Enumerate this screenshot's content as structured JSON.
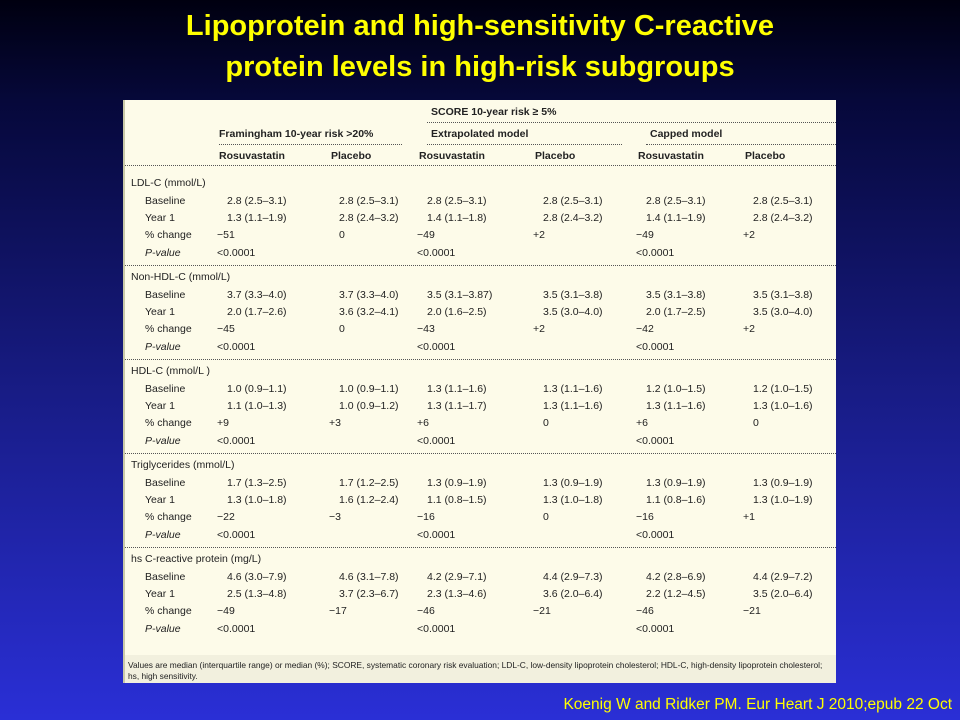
{
  "slide": {
    "title_line1": "Lipoprotein and high-sensitivity C-reactive",
    "title_line2": "protein levels in high-risk subgroups",
    "citation": "Koenig W and Ridker PM.   Eur Heart J 2010;epub 22 Oct"
  },
  "table": {
    "score_header": "SCORE 10-year risk ≥ 5%",
    "group_framingham": "Framingham 10-year risk >20%",
    "group_extrapolated": "Extrapolated model",
    "group_capped": "Capped model",
    "col_headers": [
      "Rosuvastatin",
      "Placebo",
      "Rosuvastatin",
      "Placebo",
      "Rosuvastatin",
      "Placebo"
    ],
    "sections": [
      {
        "title": "LDL-C (mmol/L)",
        "rows": [
          {
            "label": "Baseline",
            "cells": [
              "2.8 (2.5–3.1)",
              "2.8 (2.5–3.1)",
              "2.8 (2.5–3.1)",
              "2.8 (2.5–3.1)",
              "2.8 (2.5–3.1)",
              "2.8 (2.5–3.1)"
            ]
          },
          {
            "label": "Year 1",
            "cells": [
              "1.3 (1.1–1.9)",
              "2.8 (2.4–3.2)",
              "1.4 (1.1–1.8)",
              "2.8 (2.4–3.2)",
              "1.4 (1.1–1.9)",
              "2.8 (2.4–3.2)"
            ]
          },
          {
            "label": "% change",
            "cells": [
              "−51",
              "0",
              "−49",
              "+2",
              "−49",
              "+2"
            ]
          },
          {
            "label": "P-value",
            "cells": [
              "<0.0001",
              "",
              "<0.0001",
              "",
              "<0.0001",
              ""
            ]
          }
        ]
      },
      {
        "title": "Non-HDL-C (mmol/L)",
        "rows": [
          {
            "label": "Baseline",
            "cells": [
              "3.7 (3.3–4.0)",
              "3.7 (3.3–4.0)",
              "3.5 (3.1–3.87)",
              "3.5 (3.1–3.8)",
              "3.5 (3.1–3.8)",
              "3.5 (3.1–3.8)"
            ]
          },
          {
            "label": "Year 1",
            "cells": [
              "2.0 (1.7–2.6)",
              "3.6 (3.2–4.1)",
              "2.0 (1.6–2.5)",
              "3.5 (3.0–4.0)",
              "2.0 (1.7–2.5)",
              "3.5 (3.0–4.0)"
            ]
          },
          {
            "label": "% change",
            "cells": [
              "−45",
              "0",
              "−43",
              "+2",
              "−42",
              "+2"
            ]
          },
          {
            "label": "P-value",
            "cells": [
              "<0.0001",
              "",
              "<0.0001",
              "",
              "<0.0001",
              ""
            ]
          }
        ]
      },
      {
        "title": "HDL-C (mmol/L )",
        "rows": [
          {
            "label": "Baseline",
            "cells": [
              "1.0 (0.9–1.1)",
              "1.0 (0.9–1.1)",
              "1.3 (1.1–1.6)",
              "1.3 (1.1–1.6)",
              "1.2 (1.0–1.5)",
              "1.2 (1.0–1.5)"
            ]
          },
          {
            "label": "Year 1",
            "cells": [
              "1.1 (1.0–1.3)",
              "1.0 (0.9–1.2)",
              "1.3 (1.1–1.7)",
              "1.3 (1.1–1.6)",
              "1.3 (1.1–1.6)",
              "1.3 (1.0–1.6)"
            ]
          },
          {
            "label": "% change",
            "cells": [
              "+9",
              "+3",
              "+6",
              "0",
              "+6",
              "0"
            ]
          },
          {
            "label": "P-value",
            "cells": [
              "<0.0001",
              "",
              "<0.0001",
              "",
              "<0.0001",
              ""
            ]
          }
        ]
      },
      {
        "title": "Triglycerides (mmol/L)",
        "rows": [
          {
            "label": "Baseline",
            "cells": [
              "1.7 (1.3–2.5)",
              "1.7 (1.2–2.5)",
              "1.3 (0.9–1.9)",
              "1.3 (0.9–1.9)",
              "1.3 (0.9–1.9)",
              "1.3 (0.9–1.9)"
            ]
          },
          {
            "label": "Year 1",
            "cells": [
              "1.3 (1.0–1.8)",
              "1.6 (1.2–2.4)",
              "1.1 (0.8–1.5)",
              "1.3 (1.0–1.8)",
              "1.1 (0.8–1.6)",
              "1.3 (1.0–1.9)"
            ]
          },
          {
            "label": "% change",
            "cells": [
              "−22",
              "−3",
              "−16",
              "0",
              "−16",
              "+1"
            ]
          },
          {
            "label": "P-value",
            "cells": [
              "<0.0001",
              "",
              "<0.0001",
              "",
              "<0.0001",
              ""
            ]
          }
        ]
      },
      {
        "title": "hs C-reactive protein (mg/L)",
        "rows": [
          {
            "label": "Baseline",
            "cells": [
              "4.6 (3.0–7.9)",
              "4.6 (3.1–7.8)",
              "4.2 (2.9–7.1)",
              "4.4 (2.9–7.3)",
              "4.2 (2.8–6.9)",
              "4.4 (2.9–7.2)"
            ]
          },
          {
            "label": "Year 1",
            "cells": [
              "2.5 (1.3–4.8)",
              "3.7 (2.3–6.7)",
              "2.3 (1.3–4.6)",
              "3.6 (2.0–6.4)",
              "2.2 (1.2–4.5)",
              "3.5 (2.0–6.4)"
            ]
          },
          {
            "label": "% change",
            "cells": [
              "−49",
              "−17",
              "−46",
              "−21",
              "−46",
              "−21"
            ]
          },
          {
            "label": "P-value",
            "cells": [
              "<0.0001",
              "",
              "<0.0001",
              "",
              "<0.0001",
              ""
            ]
          }
        ]
      }
    ],
    "footnote": "Values are median (interquartile range) or median (%); SCORE, systematic coronary risk evaluation; LDL-C, low-density lipoprotein cholesterol; HDL-C, high-density lipoprotein cholesterol; hs, high sensitivity."
  }
}
